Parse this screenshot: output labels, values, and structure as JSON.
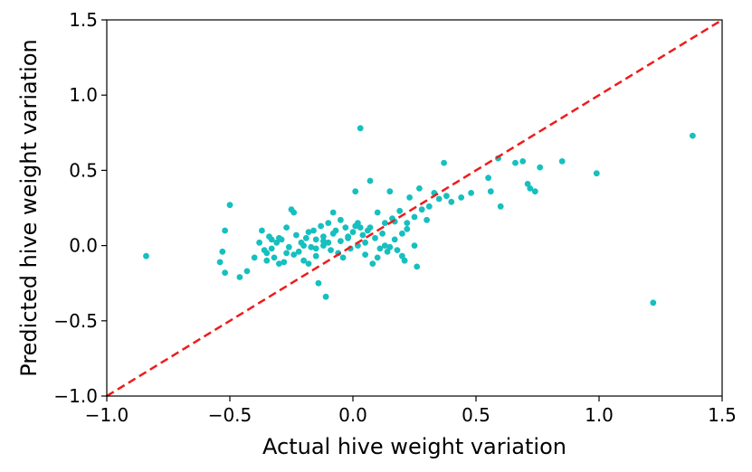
{
  "chart_data": {
    "type": "scatter",
    "title": "",
    "xlabel": "Actual hive weight variation",
    "ylabel": "Predicted hive weight variation",
    "xlim": [
      -1.0,
      1.5
    ],
    "ylim": [
      -1.0,
      1.5
    ],
    "xticks": [
      -1.0,
      -0.5,
      0.0,
      0.5,
      1.0,
      1.5
    ],
    "yticks": [
      -1.0,
      -0.5,
      0.0,
      0.5,
      1.0,
      1.5
    ],
    "xtick_labels": [
      "−1.0",
      "−0.5",
      "0.0",
      "0.5",
      "1.0",
      "1.5"
    ],
    "ytick_labels": [
      "−1.0",
      "−0.5",
      "0.0",
      "0.5",
      "1.0",
      "1.5"
    ],
    "grid": false,
    "point_color": "#17bfbf",
    "reference_line": {
      "name": "y = x",
      "color": "#ee1c1c",
      "style": "dashed",
      "from": [
        -1.0,
        -1.0
      ],
      "to": [
        1.5,
        1.5
      ]
    },
    "series": [
      {
        "name": "predictions",
        "x": [
          -0.84,
          -0.54,
          -0.53,
          -0.52,
          -0.52,
          -0.5,
          -0.46,
          -0.43,
          -0.4,
          -0.38,
          -0.37,
          -0.36,
          -0.35,
          -0.35,
          -0.34,
          -0.33,
          -0.33,
          -0.32,
          -0.31,
          -0.3,
          -0.29,
          -0.28,
          -0.27,
          -0.26,
          -0.25,
          -0.24,
          -0.24,
          -0.23,
          -0.22,
          -0.21,
          -0.2,
          -0.19,
          -0.18,
          -0.17,
          -0.16,
          -0.15,
          -0.15,
          -0.14,
          -0.13,
          -0.12,
          -0.12,
          -0.11,
          -0.1,
          -0.09,
          -0.08,
          -0.08,
          -0.07,
          -0.06,
          -0.05,
          -0.04,
          -0.03,
          -0.02,
          -0.01,
          0.0,
          0.01,
          0.02,
          0.02,
          0.03,
          0.04,
          0.05,
          0.06,
          0.07,
          0.08,
          0.09,
          0.1,
          0.11,
          0.12,
          0.13,
          0.14,
          0.15,
          0.16,
          0.17,
          0.18,
          0.19,
          0.2,
          0.21,
          0.22,
          0.23,
          0.25,
          0.26,
          0.27,
          0.28,
          0.3,
          0.31,
          0.33,
          0.35,
          0.37,
          0.38,
          0.4,
          0.44,
          0.48,
          0.55,
          0.56,
          0.59,
          0.6,
          0.66,
          0.69,
          0.71,
          0.72,
          0.74,
          0.76,
          0.85,
          0.99,
          1.22,
          1.38,
          0.03,
          -0.1,
          -0.2,
          -0.27,
          0.1,
          -0.05,
          0.07,
          0.13,
          0.2,
          -0.15,
          0.01,
          -0.3,
          0.22,
          -0.02,
          0.17,
          -0.12,
          -0.18,
          0.15,
          0.05,
          0.25
        ],
        "y": [
          -0.07,
          -0.11,
          -0.04,
          -0.18,
          0.1,
          0.27,
          -0.21,
          -0.17,
          -0.08,
          0.02,
          0.1,
          -0.03,
          -0.05,
          -0.1,
          0.06,
          -0.02,
          0.04,
          -0.08,
          0.02,
          -0.12,
          0.04,
          -0.11,
          0.12,
          -0.01,
          0.24,
          0.22,
          -0.06,
          0.07,
          -0.04,
          0.02,
          -0.1,
          0.05,
          -0.12,
          -0.01,
          0.1,
          -0.07,
          0.04,
          -0.25,
          0.13,
          0.0,
          0.06,
          -0.34,
          0.15,
          -0.03,
          0.22,
          0.08,
          0.1,
          -0.05,
          0.03,
          -0.08,
          0.12,
          0.05,
          -0.02,
          0.09,
          0.36,
          0.0,
          0.15,
          0.78,
          0.07,
          -0.06,
          0.1,
          0.43,
          -0.12,
          0.05,
          0.22,
          -0.02,
          0.08,
          0.15,
          -0.04,
          0.36,
          0.18,
          0.04,
          -0.03,
          0.23,
          0.08,
          -0.1,
          0.15,
          0.32,
          0.0,
          -0.14,
          0.38,
          0.24,
          0.17,
          0.26,
          0.35,
          0.31,
          0.55,
          0.33,
          0.29,
          0.32,
          0.35,
          0.45,
          0.36,
          0.58,
          0.26,
          0.55,
          0.56,
          0.41,
          0.38,
          0.36,
          0.52,
          0.56,
          0.48,
          -0.38,
          0.73,
          0.12,
          0.02,
          0.0,
          -0.05,
          -0.08,
          0.17,
          0.12,
          0.0,
          -0.07,
          -0.02,
          0.13,
          0.05,
          0.11,
          0.06,
          0.16,
          0.03,
          0.09,
          -0.01,
          0.02,
          0.19
        ]
      }
    ]
  }
}
